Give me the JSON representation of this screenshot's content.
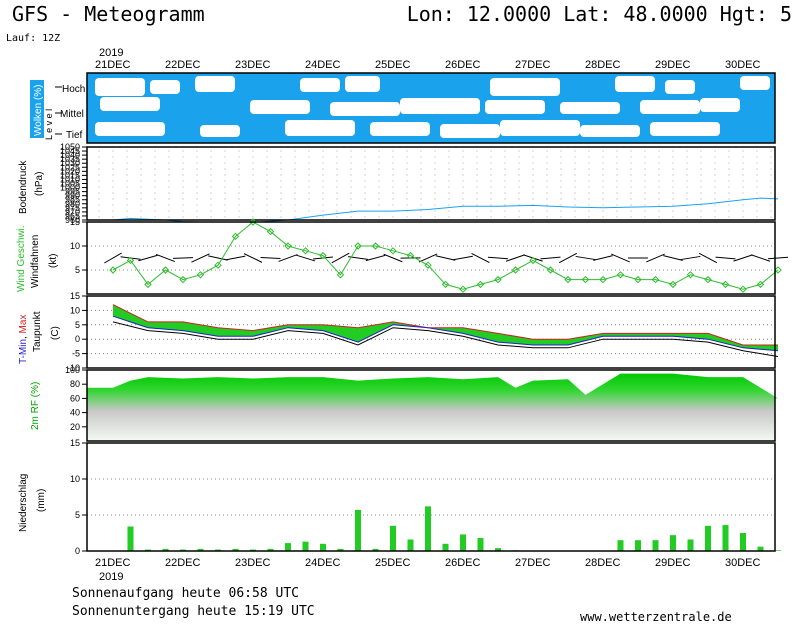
{
  "header": {
    "title": "GFS - Meteogramm",
    "coords": "Lon: 12.0000 Lat: 48.0000 Hgt: 5",
    "run": "Lauf: 12Z"
  },
  "footer": {
    "sunrise": "Sonnenaufgang heute 06:58 UTC",
    "sunset": "Sonnenuntergang heute 15:19 UTC",
    "source": "www.wetterzentrale.de"
  },
  "colors": {
    "sky": "#1aa3ec",
    "cloud": "#ffffff",
    "pressure": "#1aa3ec",
    "wind": "#2dbd2d",
    "rain": "#22cc22",
    "tmin": "#2020d0",
    "tmax": "#d02020",
    "rh": "#00c800"
  },
  "x_axis": {
    "year": "2019",
    "days": [
      "21DEC",
      "22DEC",
      "23DEC",
      "24DEC",
      "25DEC",
      "26DEC",
      "27DEC",
      "28DEC",
      "29DEC",
      "30DEC"
    ]
  },
  "panels": {
    "clouds": {
      "title": "Wolken (%)",
      "level": "L e v e l",
      "levels": [
        "Hoch",
        "Mittel",
        "Tief"
      ]
    },
    "pressure": {
      "title": "Bodendruck",
      "unit": "(hPa)",
      "ticks": [
        "1050",
        "1045",
        "1040",
        "1035",
        "1030",
        "1025",
        "1020",
        "1015",
        "1010",
        "1005",
        "1000",
        "995",
        "990",
        "985",
        "980",
        "975",
        "970",
        "965",
        "960"
      ]
    },
    "wind": {
      "title1": "Wind Geschwi.",
      "title2": "Windfahnen",
      "unit": "(kt)",
      "ticks": [
        "15",
        "10",
        "5"
      ]
    },
    "temp": {
      "title_min": "T-Min",
      "title_max": "Max",
      "title2": "Taupunkt",
      "unit": "(C)",
      "ticks": [
        "15",
        "10",
        "5",
        "0",
        "-5",
        "-10"
      ]
    },
    "rh": {
      "title": "2m RF (%)",
      "ticks": [
        "100",
        "80",
        "60",
        "40",
        "20"
      ]
    },
    "rain": {
      "title": "Niederschlag",
      "unit": "(mm)",
      "ticks": [
        "15",
        "10",
        "5",
        "0"
      ]
    }
  },
  "chart_data": [
    {
      "type": "line",
      "name": "Bodendruck",
      "x": [
        0,
        0.25,
        0.5,
        0.75,
        1,
        1.5,
        2,
        2.5,
        3,
        3.5,
        4,
        4.5,
        5,
        5.5,
        6,
        6.5,
        7,
        7.5,
        8,
        8.5,
        9,
        9.25,
        9.5
      ],
      "y": [
        960,
        962,
        961,
        960,
        958,
        957,
        957,
        960,
        966,
        971,
        971,
        973,
        977,
        977,
        978,
        976,
        975,
        976,
        977,
        980,
        985,
        987,
        986
      ],
      "ylim": [
        960,
        1050
      ]
    },
    {
      "type": "line",
      "name": "Wind Geschwi.",
      "x": [
        0,
        0.25,
        0.5,
        0.75,
        1,
        1.25,
        1.5,
        1.75,
        2,
        2.25,
        2.5,
        2.75,
        3,
        3.25,
        3.5,
        3.75,
        4,
        4.25,
        4.5,
        4.75,
        5,
        5.25,
        5.5,
        5.75,
        6,
        6.25,
        6.5,
        6.75,
        7,
        7.25,
        7.5,
        7.75,
        8,
        8.25,
        8.5,
        8.75,
        9,
        9.25,
        9.5
      ],
      "y": [
        5,
        7,
        2,
        5,
        3,
        4,
        6,
        12,
        15,
        13,
        10,
        9,
        8,
        4,
        10,
        10,
        9,
        8,
        6,
        2,
        1,
        2,
        3,
        5,
        7,
        5,
        3,
        3,
        3,
        4,
        3,
        3,
        2,
        4,
        3,
        2,
        1,
        2,
        5
      ],
      "ylim": [
        0,
        15
      ]
    },
    {
      "type": "line",
      "name": "T-Min / Max / Taupunkt",
      "x": [
        0,
        0.5,
        1,
        1.5,
        2,
        2.5,
        3,
        3.5,
        4,
        4.5,
        5,
        5.5,
        6,
        6.5,
        7,
        7.5,
        8,
        8.5,
        9,
        9.5
      ],
      "series": [
        {
          "name": "Max",
          "values": [
            12,
            6,
            6,
            4,
            3,
            5,
            5,
            4,
            6,
            4,
            4,
            2,
            0,
            0,
            2,
            2,
            2,
            2,
            -2,
            -2
          ]
        },
        {
          "name": "T-Min",
          "values": [
            8,
            4,
            3,
            1,
            1,
            4,
            3,
            -1,
            5,
            4,
            2,
            -1,
            -2,
            -2,
            1,
            1,
            1,
            0,
            -3,
            -4
          ]
        },
        {
          "name": "Taupunkt",
          "values": [
            6,
            3,
            2,
            0,
            0,
            3,
            2,
            -2,
            4,
            3,
            1,
            -2,
            -3,
            -3,
            0,
            0,
            0,
            -1,
            -4,
            -6
          ]
        }
      ],
      "ylim": [
        -10,
        15
      ]
    },
    {
      "type": "area",
      "name": "2m RF (%)",
      "x": [
        0,
        0.25,
        0.5,
        1,
        1.5,
        2,
        2.5,
        3,
        3.5,
        4,
        4.5,
        5,
        5.5,
        5.75,
        6,
        6.5,
        6.75,
        7,
        7.25,
        7.5,
        8,
        8.5,
        9,
        9.5
      ],
      "y": [
        75,
        85,
        90,
        88,
        90,
        88,
        90,
        90,
        85,
        88,
        90,
        87,
        90,
        75,
        85,
        87,
        65,
        80,
        95,
        95,
        95,
        90,
        90,
        60
      ],
      "ylim": [
        0,
        100
      ]
    },
    {
      "type": "bar",
      "name": "Niederschlag",
      "x": [
        0,
        0.25,
        0.5,
        0.75,
        1,
        1.25,
        1.5,
        1.75,
        2,
        2.25,
        2.5,
        2.75,
        3,
        3.25,
        3.5,
        3.75,
        4,
        4.25,
        4.5,
        4.75,
        5,
        5.25,
        5.5,
        5.75,
        6,
        6.25,
        6.5,
        6.75,
        7,
        7.25,
        7.5,
        7.75,
        8,
        8.25,
        8.5,
        8.75,
        9,
        9.25,
        9.5
      ],
      "y": [
        0,
        3.4,
        0.2,
        0.3,
        0.2,
        0.3,
        0.2,
        0.3,
        0.2,
        0.3,
        1.1,
        1.3,
        1.0,
        0.3,
        5.7,
        0.3,
        3.5,
        1.6,
        6.2,
        1.0,
        2.3,
        1.8,
        0.4,
        0.1,
        0,
        0,
        0,
        0,
        0,
        1.5,
        1.5,
        1.5,
        2.2,
        1.6,
        3.5,
        3.6,
        2.5,
        0.6,
        0.1
      ],
      "ylim": [
        0,
        15
      ]
    }
  ]
}
